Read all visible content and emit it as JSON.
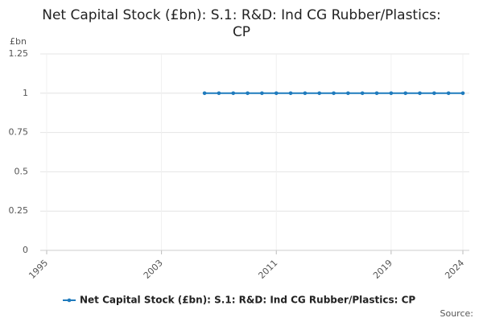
{
  "chart_data": {
    "type": "line",
    "title": "Net Capital Stock (£bn): S.1: R&D: Ind CG Rubber/Plastics: CP",
    "y_unit": "£bn",
    "source": "Source:",
    "x": [
      2006,
      2007,
      2008,
      2009,
      2010,
      2011,
      2012,
      2013,
      2014,
      2015,
      2016,
      2017,
      2018,
      2019,
      2020,
      2021,
      2022,
      2023,
      2024
    ],
    "series": [
      {
        "name": "Net Capital Stock (£bn): S.1: R&D: Ind CG Rubber/Plastics: CP",
        "color": "#1f7bbd",
        "values": [
          1,
          1,
          1,
          1,
          1,
          1,
          1,
          1,
          1,
          1,
          1,
          1,
          1,
          1,
          1,
          1,
          1,
          1,
          1
        ]
      }
    ],
    "xlim": [
      1995,
      2024
    ],
    "xticks": [
      1995,
      2003,
      2011,
      2019,
      2024
    ],
    "ylim": [
      0,
      1.25
    ],
    "yticks": [
      0,
      0.25,
      0.5,
      0.75,
      1,
      1.25
    ],
    "grid": true
  }
}
